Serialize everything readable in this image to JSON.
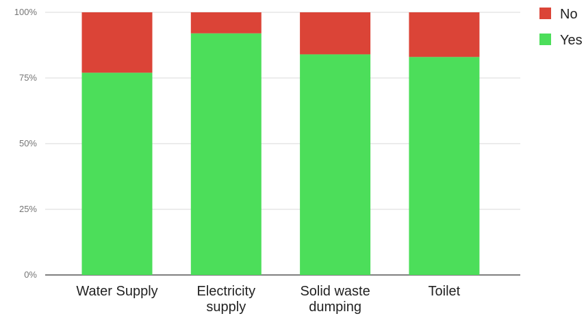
{
  "chart_data": {
    "type": "bar",
    "stacked": true,
    "percent": true,
    "categories": [
      [
        "Water Supply"
      ],
      [
        "Electricity",
        "supply"
      ],
      [
        "Solid waste",
        "dumping"
      ],
      [
        "Toilet"
      ]
    ],
    "series": [
      {
        "name": "Yes",
        "color": "#4cde5a",
        "values": [
          77,
          92,
          84,
          83
        ]
      },
      {
        "name": "No",
        "color": "#db4437",
        "values": [
          23,
          8,
          16,
          17
        ]
      }
    ],
    "yticks": [
      "0%",
      "25%",
      "50%",
      "75%",
      "100%"
    ],
    "ylim": [
      0,
      100
    ],
    "grid": true,
    "legend": {
      "position": "top-right",
      "items": [
        "No",
        "Yes"
      ]
    }
  }
}
